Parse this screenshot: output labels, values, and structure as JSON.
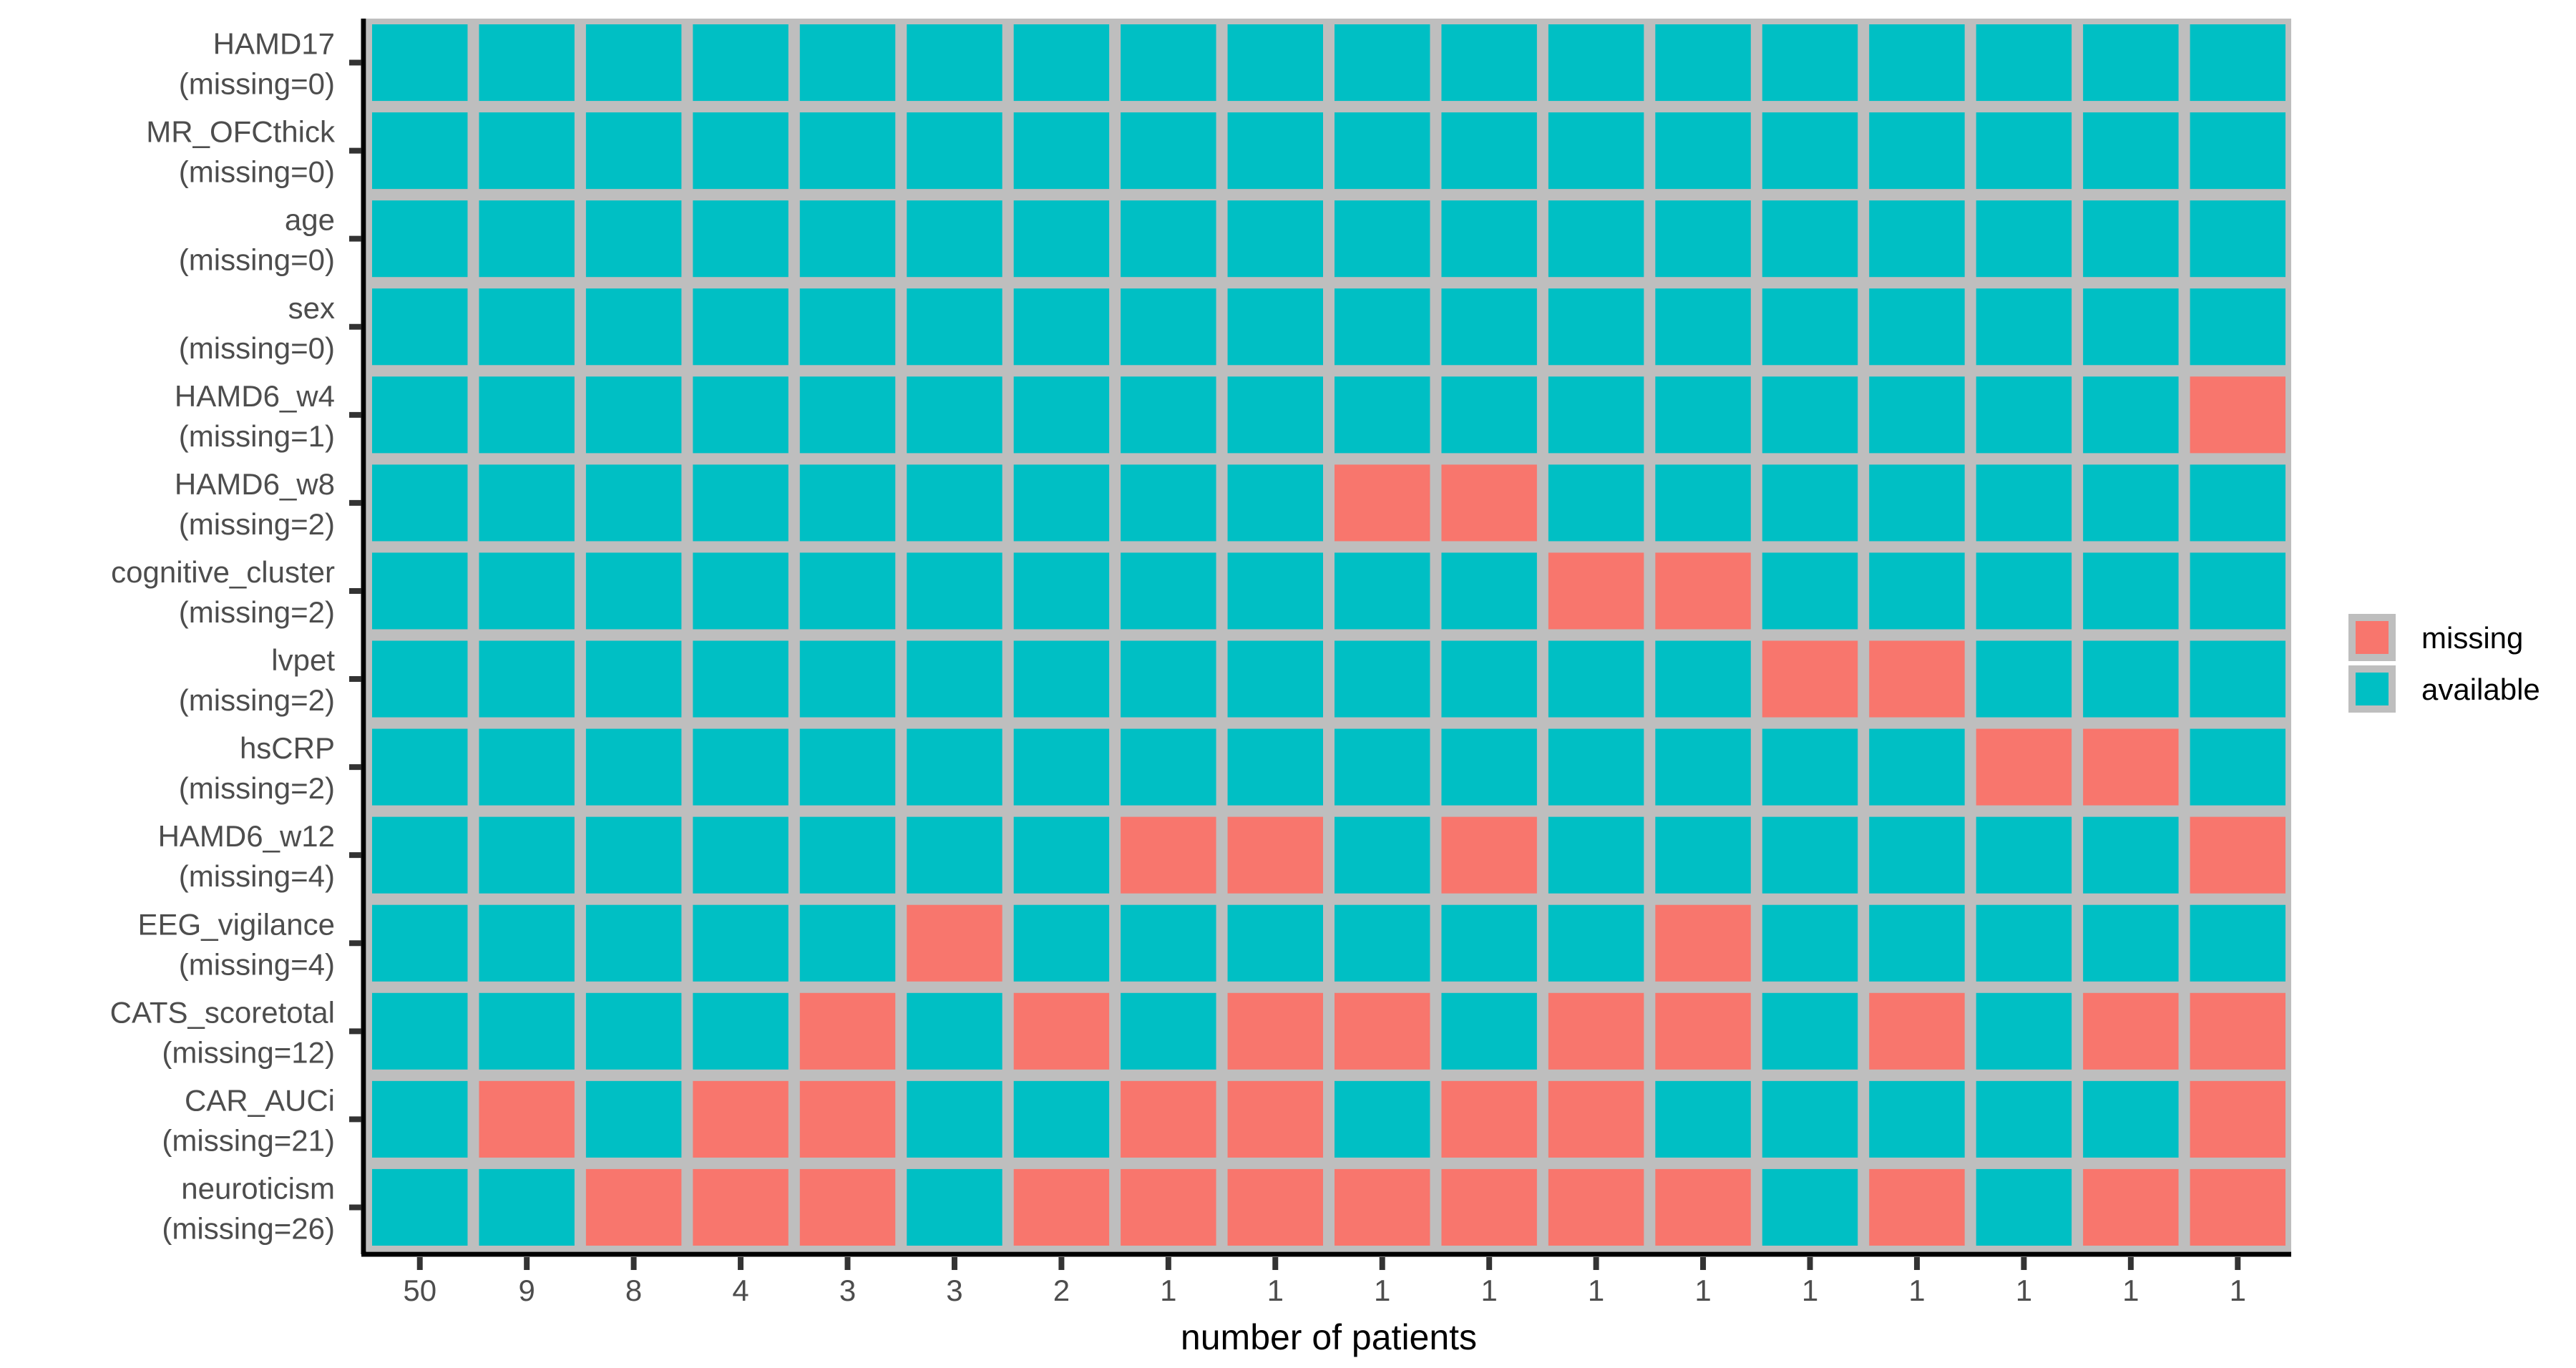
{
  "chart_data": {
    "type": "heatmap",
    "title": "",
    "xlabel": "number of patients",
    "ylabel": "",
    "x": [
      "50",
      "9",
      "8",
      "4",
      "3",
      "3",
      "2",
      "1",
      "1",
      "1",
      "1",
      "1",
      "1",
      "1",
      "1",
      "1",
      "1",
      "1"
    ],
    "y": [
      {
        "name": "HAMD17",
        "missing_label": "(missing=0)"
      },
      {
        "name": "MR_OFCthick",
        "missing_label": "(missing=0)"
      },
      {
        "name": "age",
        "missing_label": "(missing=0)"
      },
      {
        "name": "sex",
        "missing_label": "(missing=0)"
      },
      {
        "name": "HAMD6_w4",
        "missing_label": "(missing=1)"
      },
      {
        "name": "HAMD6_w8",
        "missing_label": "(missing=2)"
      },
      {
        "name": "cognitive_cluster",
        "missing_label": "(missing=2)"
      },
      {
        "name": "lvpet",
        "missing_label": "(missing=2)"
      },
      {
        "name": "hsCRP",
        "missing_label": "(missing=2)"
      },
      {
        "name": "HAMD6_w12",
        "missing_label": "(missing=4)"
      },
      {
        "name": "EEG_vigilance",
        "missing_label": "(missing=4)"
      },
      {
        "name": "CATS_scoretotal",
        "missing_label": "(missing=12)"
      },
      {
        "name": "CAR_AUCi",
        "missing_label": "(missing=21)"
      },
      {
        "name": "neuroticism",
        "missing_label": "(missing=26)"
      }
    ],
    "values": [
      [
        0,
        0,
        0,
        0,
        0,
        0,
        0,
        0,
        0,
        0,
        0,
        0,
        0,
        0,
        0,
        0,
        0,
        0
      ],
      [
        0,
        0,
        0,
        0,
        0,
        0,
        0,
        0,
        0,
        0,
        0,
        0,
        0,
        0,
        0,
        0,
        0,
        0
      ],
      [
        0,
        0,
        0,
        0,
        0,
        0,
        0,
        0,
        0,
        0,
        0,
        0,
        0,
        0,
        0,
        0,
        0,
        0
      ],
      [
        0,
        0,
        0,
        0,
        0,
        0,
        0,
        0,
        0,
        0,
        0,
        0,
        0,
        0,
        0,
        0,
        0,
        0
      ],
      [
        0,
        0,
        0,
        0,
        0,
        0,
        0,
        0,
        0,
        0,
        0,
        0,
        0,
        0,
        0,
        0,
        0,
        1
      ],
      [
        0,
        0,
        0,
        0,
        0,
        0,
        0,
        0,
        0,
        1,
        1,
        0,
        0,
        0,
        0,
        0,
        0,
        0
      ],
      [
        0,
        0,
        0,
        0,
        0,
        0,
        0,
        0,
        0,
        0,
        0,
        1,
        1,
        0,
        0,
        0,
        0,
        0
      ],
      [
        0,
        0,
        0,
        0,
        0,
        0,
        0,
        0,
        0,
        0,
        0,
        0,
        0,
        1,
        1,
        0,
        0,
        0
      ],
      [
        0,
        0,
        0,
        0,
        0,
        0,
        0,
        0,
        0,
        0,
        0,
        0,
        0,
        0,
        0,
        1,
        1,
        0
      ],
      [
        0,
        0,
        0,
        0,
        0,
        0,
        0,
        1,
        1,
        0,
        1,
        0,
        0,
        0,
        0,
        0,
        0,
        1
      ],
      [
        0,
        0,
        0,
        0,
        0,
        1,
        0,
        0,
        0,
        0,
        0,
        0,
        1,
        0,
        0,
        0,
        0,
        0
      ],
      [
        0,
        0,
        0,
        0,
        1,
        0,
        1,
        0,
        1,
        1,
        0,
        1,
        1,
        0,
        1,
        0,
        1,
        1
      ],
      [
        0,
        1,
        0,
        1,
        1,
        0,
        0,
        1,
        1,
        0,
        1,
        1,
        0,
        0,
        0,
        0,
        0,
        1
      ],
      [
        0,
        0,
        1,
        1,
        1,
        0,
        1,
        1,
        1,
        1,
        1,
        1,
        1,
        0,
        1,
        0,
        1,
        1
      ]
    ],
    "legend": {
      "placement": "right",
      "entries": [
        {
          "label": "missing",
          "value": 1,
          "color": "#F8766D"
        },
        {
          "label": "available",
          "value": 0,
          "color": "#00BFC4"
        }
      ]
    },
    "grid": false,
    "colors": {
      "missing": "#F8766D",
      "available": "#00BFC4",
      "grid_line": "#BEBEBE",
      "axis_line": "#000000",
      "tick": "#333333",
      "tick_text": "#4d4d4d"
    }
  }
}
